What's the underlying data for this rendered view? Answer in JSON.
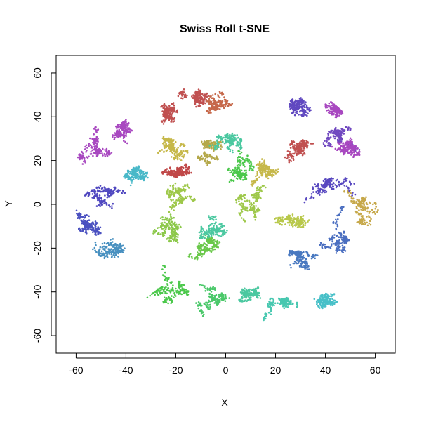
{
  "chart_data": {
    "type": "scatter",
    "title": "Swiss Roll t-SNE",
    "xlabel": "X",
    "ylabel": "Y",
    "xlim": [
      -68,
      68
    ],
    "ylim": [
      -68,
      68
    ],
    "x_ticks": [
      -60,
      -40,
      -20,
      0,
      20,
      40,
      60
    ],
    "y_ticks": [
      -60,
      -40,
      -20,
      0,
      20,
      40,
      60
    ],
    "x_tick_labels": [
      "-60",
      "-40",
      "-20",
      "0",
      "20",
      "40",
      "60"
    ],
    "y_tick_labels": [
      "-60",
      "-40",
      "-20",
      "0",
      "20",
      "40",
      "60"
    ],
    "grid": false,
    "legend": "none",
    "color_scale": [
      "#C05050",
      "#C6A84A",
      "#9EC84A",
      "#4BC84B",
      "#4BC8A0",
      "#48B0C8",
      "#4A6EC0",
      "#6048C0",
      "#A848C0"
    ],
    "clusters": [
      {
        "x": -24,
        "y": 40,
        "sx": 6,
        "sy": 5,
        "color": "#C05050"
      },
      {
        "x": -12,
        "y": 50,
        "sx": 6,
        "sy": 5,
        "color": "#C05050"
      },
      {
        "x": -2,
        "y": 45,
        "sx": 5,
        "sy": 5,
        "color": "#C6684A"
      },
      {
        "x": 28,
        "y": 27,
        "sx": 5,
        "sy": 4,
        "color": "#C05050"
      },
      {
        "x": -20,
        "y": 16,
        "sx": 4,
        "sy": 2,
        "color": "#C04848"
      },
      {
        "x": 55,
        "y": 0,
        "sx": 3,
        "sy": 7,
        "color": "#C6A84A"
      },
      {
        "x": -22,
        "y": 26,
        "sx": 5,
        "sy": 3,
        "color": "#C6B84A"
      },
      {
        "x": -8,
        "y": 25,
        "sx": 6,
        "sy": 4,
        "color": "#B4A84A"
      },
      {
        "x": 18,
        "y": 15,
        "sx": 7,
        "sy": 5,
        "color": "#C6B84A"
      },
      {
        "x": 28,
        "y": -8,
        "sx": 6,
        "sy": 4,
        "color": "#B8C84A"
      },
      {
        "x": -20,
        "y": 5,
        "sx": 6,
        "sy": 5,
        "color": "#9EC84A"
      },
      {
        "x": -22,
        "y": -12,
        "sx": 6,
        "sy": 6,
        "color": "#8CC84A"
      },
      {
        "x": 10,
        "y": 2,
        "sx": 7,
        "sy": 6,
        "color": "#9EC84A"
      },
      {
        "x": -8,
        "y": -20,
        "sx": 5,
        "sy": 5,
        "color": "#6AC84A"
      },
      {
        "x": -20,
        "y": -40,
        "sx": 6,
        "sy": 6,
        "color": "#4BC84B"
      },
      {
        "x": -5,
        "y": -45,
        "sx": 5,
        "sy": 6,
        "color": "#4BC86A"
      },
      {
        "x": 5,
        "y": 15,
        "sx": 6,
        "sy": 7,
        "color": "#4BC84B"
      },
      {
        "x": 2,
        "y": 28,
        "sx": 5,
        "sy": 3,
        "color": "#4BC8A0"
      },
      {
        "x": -2,
        "y": -10,
        "sx": 6,
        "sy": 5,
        "color": "#4BC8A0"
      },
      {
        "x": 8,
        "y": -38,
        "sx": 6,
        "sy": 6,
        "color": "#4BC8A0"
      },
      {
        "x": 20,
        "y": -45,
        "sx": 6,
        "sy": 5,
        "color": "#48C8B0"
      },
      {
        "x": 38,
        "y": -45,
        "sx": 5,
        "sy": 4,
        "color": "#48C0C8"
      },
      {
        "x": -36,
        "y": 12,
        "sx": 3,
        "sy": 4,
        "color": "#48B8C8"
      },
      {
        "x": -45,
        "y": -22,
        "sx": 6,
        "sy": 5,
        "color": "#4890C0"
      },
      {
        "x": 30,
        "y": -25,
        "sx": 6,
        "sy": 6,
        "color": "#4878C0"
      },
      {
        "x": 45,
        "y": -18,
        "sx": 4,
        "sy": 6,
        "color": "#4A6EC0"
      },
      {
        "x": -52,
        "y": -10,
        "sx": 5,
        "sy": 5,
        "color": "#4A50C0"
      },
      {
        "x": -48,
        "y": 5,
        "sx": 5,
        "sy": 4,
        "color": "#5048C0"
      },
      {
        "x": 40,
        "y": 10,
        "sx": 7,
        "sy": 6,
        "color": "#5848C0"
      },
      {
        "x": 30,
        "y": 45,
        "sx": 6,
        "sy": 6,
        "color": "#6048C0"
      },
      {
        "x": 44,
        "y": 30,
        "sx": 6,
        "sy": 5,
        "color": "#7048C0"
      },
      {
        "x": -52,
        "y": 25,
        "sx": 6,
        "sy": 5,
        "color": "#A848C0"
      },
      {
        "x": -42,
        "y": 35,
        "sx": 4,
        "sy": 5,
        "color": "#A848C0"
      },
      {
        "x": 45,
        "y": 45,
        "sx": 5,
        "sy": 5,
        "color": "#A848C0"
      },
      {
        "x": 50,
        "y": 25,
        "sx": 4,
        "sy": 4,
        "color": "#A848C0"
      }
    ]
  }
}
